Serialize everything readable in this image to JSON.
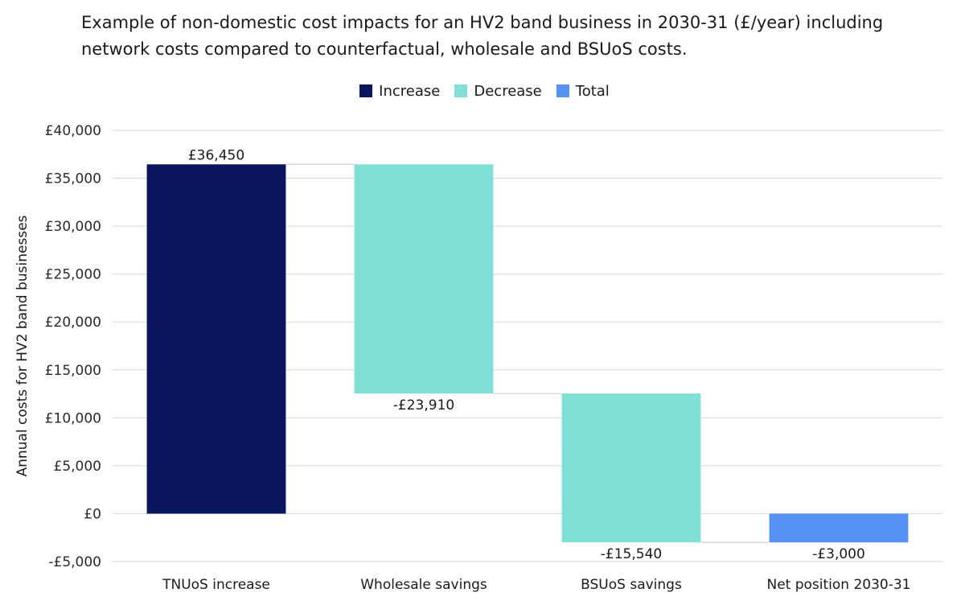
{
  "title": "Example of non-domestic cost impacts for an HV2 band business in 2030-31 (£/year) including network costs compared to counterfactual, wholesale and BSUoS costs.",
  "legend": [
    {
      "label": "Increase",
      "color": "#0b1660"
    },
    {
      "label": "Decrease",
      "color": "#80e0d6"
    },
    {
      "label": "Total",
      "color": "#5592f2"
    }
  ],
  "chart_data": {
    "type": "bar",
    "subtype": "waterfall",
    "title": "Example of non-domestic cost impacts for an HV2 band business in 2030-31 (£/year) including network costs compared to counterfactual, wholesale and BSUoS costs.",
    "ylabel": "Annual costs for HV2 band businesses",
    "xlabel": "",
    "ylim": [
      -5000,
      40000
    ],
    "yticks": [
      -5000,
      0,
      5000,
      10000,
      15000,
      20000,
      25000,
      30000,
      35000,
      40000
    ],
    "ytick_labels": [
      "-£5,000",
      "£0",
      "£5,000",
      "£10,000",
      "£15,000",
      "£20,000",
      "£25,000",
      "£30,000",
      "£35,000",
      "£40,000"
    ],
    "grid": true,
    "legend_position": "top",
    "categories": [
      "TNUoS increase",
      "Wholesale savings",
      "BSUoS savings",
      "Net position 2030-31"
    ],
    "values": [
      36450,
      -23910,
      -15540,
      -3000
    ],
    "bar_types": [
      "Increase",
      "Decrease",
      "Decrease",
      "Total"
    ],
    "data_labels": [
      "£36,450",
      "-£23,910",
      "-£15,540",
      "-£3,000"
    ]
  }
}
